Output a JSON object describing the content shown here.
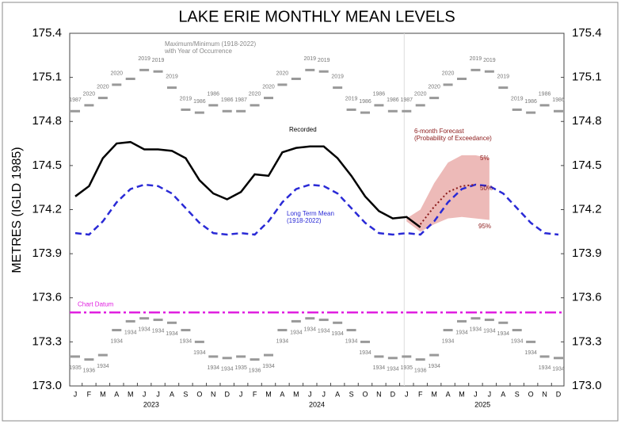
{
  "chart_data": {
    "type": "line",
    "title": "LAKE ERIE MONTHLY MEAN LEVELS",
    "y_label": "METRES (IGLD 1985)",
    "categories": [
      "J",
      "F",
      "M",
      "A",
      "M",
      "J",
      "J",
      "A",
      "S",
      "O",
      "N",
      "D",
      "J",
      "F",
      "M",
      "A",
      "M",
      "J",
      "J",
      "A",
      "S",
      "O",
      "N",
      "D",
      "J",
      "F",
      "M",
      "A",
      "M",
      "J",
      "J",
      "A",
      "S",
      "O",
      "N",
      "D"
    ],
    "years": [
      "2023",
      "2024",
      "2025"
    ],
    "ylim": [
      173.0,
      175.4
    ],
    "yticks": [
      {
        "value": 173,
        "label": "173.0"
      },
      173.3,
      173.6,
      173.9,
      174.2,
      174.5,
      174.8,
      175.1,
      175.4
    ],
    "series": [
      {
        "name": "Recorded",
        "color": "#000000",
        "values": [
          174.29,
          174.36,
          174.55,
          174.65,
          174.66,
          174.61,
          174.61,
          174.6,
          174.55,
          174.4,
          174.31,
          174.27,
          174.32,
          174.44,
          174.43,
          174.59,
          174.62,
          174.63,
          174.63,
          174.55,
          174.43,
          174.29,
          174.19,
          174.14,
          174.15,
          174.08,
          null,
          null,
          null,
          null,
          null,
          null,
          null,
          null,
          null,
          null
        ]
      },
      {
        "name": "Long Term Mean",
        "note": "(1918-2022)",
        "color": "#2a2ad6",
        "values": [
          174.04,
          174.03,
          174.12,
          174.25,
          174.34,
          174.37,
          174.36,
          174.31,
          174.21,
          174.11,
          174.04,
          174.03,
          174.04,
          174.03,
          174.12,
          174.25,
          174.34,
          174.37,
          174.36,
          174.31,
          174.21,
          174.11,
          174.04,
          174.03,
          174.04,
          174.03,
          174.12,
          174.25,
          174.34,
          174.37,
          174.36,
          174.31,
          174.21,
          174.11,
          174.04,
          174.03
        ]
      }
    ],
    "forecast": {
      "title": "6-month Forecast",
      "subtitle": "(Probability of Exceedance)",
      "color": "#8b1a1a",
      "band_color": "#e8a9a6",
      "upper": {
        "name": "5%",
        "values": [
          null,
          null,
          null,
          null,
          null,
          null,
          null,
          null,
          null,
          null,
          null,
          null,
          null,
          null,
          null,
          null,
          null,
          null,
          null,
          null,
          null,
          null,
          null,
          null,
          174.14,
          174.2,
          174.38,
          174.52,
          174.57,
          174.57,
          174.55,
          null,
          null,
          null,
          null,
          null
        ]
      },
      "median": {
        "name": "50%",
        "values": [
          null,
          null,
          null,
          null,
          null,
          null,
          null,
          null,
          null,
          null,
          null,
          null,
          null,
          null,
          null,
          null,
          null,
          null,
          null,
          null,
          null,
          null,
          null,
          null,
          null,
          174.1,
          174.22,
          174.32,
          174.36,
          174.37,
          null,
          null,
          null,
          null,
          null,
          null
        ]
      },
      "lower": {
        "name": "95%",
        "values": [
          null,
          null,
          null,
          null,
          null,
          null,
          null,
          null,
          null,
          null,
          null,
          null,
          null,
          null,
          null,
          null,
          null,
          null,
          null,
          null,
          null,
          null,
          null,
          null,
          174.12,
          174.05,
          174.1,
          174.14,
          174.15,
          174.14,
          174.13,
          null,
          null,
          null,
          null,
          null
        ]
      }
    },
    "extremes": {
      "title": "Maximum/Minimum (1918-2022)",
      "subtitle": "with Year of Occurrence",
      "color": "#999999",
      "max": {
        "values": [
          174.87,
          174.91,
          174.96,
          175.05,
          175.09,
          175.15,
          175.14,
          175.03,
          174.88,
          174.86,
          174.91,
          174.87
        ],
        "years": [
          "1987",
          "2020",
          "2020",
          "2020",
          null,
          "2019",
          "2019",
          "2019",
          "2019",
          "1986",
          "1986",
          "1986"
        ]
      },
      "min": {
        "values": [
          173.2,
          173.18,
          173.21,
          173.38,
          173.44,
          173.46,
          173.45,
          173.43,
          173.38,
          173.3,
          173.2,
          173.19
        ],
        "years": [
          "1935",
          "1936",
          "1934",
          "1934",
          "1934",
          "1934",
          "1934",
          "1934",
          "1934",
          "1934",
          "1934",
          "1934"
        ]
      }
    },
    "chart_datum": {
      "label": "Chart Datum",
      "value": 173.5,
      "color": "#e020e0"
    }
  }
}
